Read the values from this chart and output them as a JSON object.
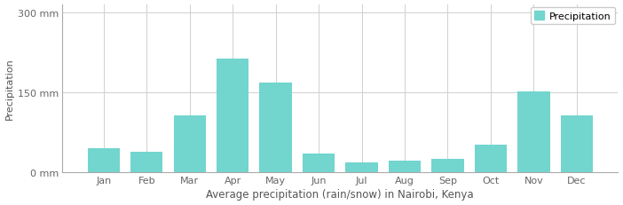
{
  "months": [
    "Jan",
    "Feb",
    "Mar",
    "Apr",
    "May",
    "Jun",
    "Jul",
    "Aug",
    "Sep",
    "Oct",
    "Nov",
    "Dec"
  ],
  "values": [
    45,
    38,
    107,
    213,
    168,
    35,
    18,
    22,
    25,
    52,
    152,
    107
  ],
  "bar_color": "#72d5ce",
  "bar_edge_color": "#72d5ce",
  "background_color": "#ffffff",
  "grid_color": "#d0d0d0",
  "yticks": [
    0,
    150,
    300
  ],
  "ytick_labels": [
    "0 mm",
    "150 mm",
    "300 mm"
  ],
  "ylim": [
    0,
    315
  ],
  "xlabel": "Average precipitation (rain/snow) in Nairobi, Kenya",
  "ylabel": "Precipitation",
  "legend_label": "Precipitation",
  "legend_color": "#72d5ce",
  "xlabel_fontsize": 8.5,
  "ylabel_fontsize": 8,
  "tick_fontsize": 8
}
